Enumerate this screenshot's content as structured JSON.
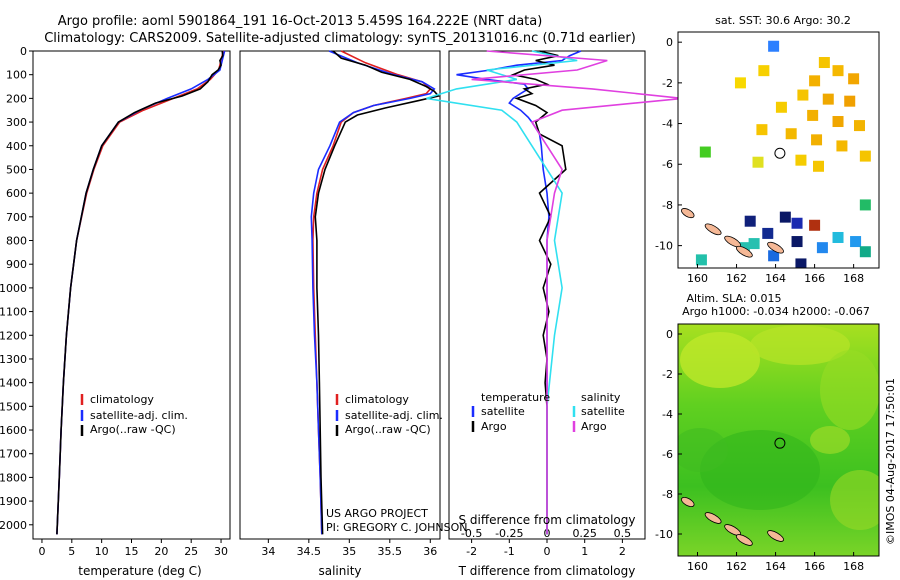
{
  "header": {
    "title_line1": "Argo profile: aoml 5901864_191 16-Oct-2013 5.459S 164.222E (NRT data)",
    "title_line2": "Climatology: CARS2009. Satellite-adjusted climatology: synTS_20131016.nc (0.71d earlier)"
  },
  "footer": {
    "project_line1": "US ARGO PROJECT",
    "project_line2": "PI: GREGORY C. JOHNSON",
    "watermark": "©IMOS 04-Aug-2017 17:50:01"
  },
  "colors": {
    "climatology": "#e02020",
    "satellite": "#1a2cff",
    "argo": "#000000",
    "sal_satellite": "#30e0f0",
    "sal_argo": "#e040e0",
    "land": "#f5b896"
  },
  "chart_data": [
    {
      "type": "line",
      "id": "temperature",
      "xlabel": "temperature (deg C)",
      "ylabel": "",
      "xlim": [
        -1.5,
        31.5
      ],
      "ylim": [
        2060,
        0
      ],
      "xticks": [
        0,
        5,
        10,
        15,
        20,
        25,
        30
      ],
      "yticks": [
        0,
        100,
        200,
        300,
        400,
        500,
        600,
        700,
        800,
        900,
        1000,
        1100,
        1200,
        1300,
        1400,
        1500,
        1600,
        1700,
        1800,
        1900,
        2000
      ],
      "legend": [
        "climatology",
        "satellite-adj. clim.",
        "Argo(..raw -QC)"
      ],
      "series": [
        {
          "name": "climatology",
          "color": "#e02020",
          "depth": [
            0,
            40,
            80,
            120,
            160,
            200,
            250,
            300,
            400,
            500,
            600,
            800,
            1000,
            1200,
            1400,
            1600,
            1800,
            2040
          ],
          "values": [
            30.4,
            30.0,
            29.6,
            28.2,
            26.0,
            22.0,
            17.0,
            13.0,
            10.2,
            8.7,
            7.5,
            5.8,
            4.8,
            4.1,
            3.6,
            3.2,
            2.9,
            2.5
          ]
        },
        {
          "name": "satellite-adj. clim.",
          "color": "#1a2cff",
          "depth": [
            0,
            40,
            80,
            120,
            160,
            200,
            250,
            300,
            400,
            500,
            600,
            800,
            1000,
            1200,
            1400,
            1600,
            1800,
            2040
          ],
          "values": [
            30.6,
            30.2,
            29.8,
            27.8,
            25.0,
            21.0,
            16.4,
            12.8,
            10.0,
            8.6,
            7.4,
            5.8,
            4.8,
            4.1,
            3.6,
            3.2,
            2.9,
            2.5
          ]
        },
        {
          "name": "Argo(..raw -QC)",
          "color": "#000000",
          "depth": [
            0,
            20,
            40,
            60,
            80,
            100,
            130,
            160,
            190,
            220,
            260,
            300,
            400,
            500,
            600,
            800,
            1000,
            1200,
            1400,
            1600,
            1800,
            2040
          ],
          "values": [
            30.2,
            30.3,
            29.8,
            30.0,
            29.5,
            28.5,
            27.8,
            26.5,
            23.5,
            19.0,
            15.5,
            12.8,
            10.0,
            8.6,
            7.4,
            5.8,
            4.8,
            4.1,
            3.6,
            3.2,
            2.9,
            2.5
          ]
        }
      ]
    },
    {
      "type": "line",
      "id": "salinity",
      "xlabel": "salinity",
      "ylabel": "",
      "xlim": [
        33.65,
        36.12
      ],
      "ylim": [
        2060,
        0
      ],
      "xticks": [
        34,
        34.5,
        35,
        35.5,
        36
      ],
      "xtick_labels": [
        "34",
        "34.5",
        "35",
        "35.5",
        "36"
      ],
      "legend": [
        "climatology",
        "satellite-adj. clim.",
        "Argo(..raw -QC)"
      ],
      "series": [
        {
          "name": "climatology",
          "color": "#e02020",
          "depth": [
            0,
            50,
            100,
            130,
            160,
            180,
            200,
            230,
            260,
            300,
            400,
            500,
            600,
            700,
            800,
            1000,
            1200,
            1400,
            1600,
            1800,
            2040
          ],
          "values": [
            34.9,
            35.2,
            35.6,
            35.9,
            36.0,
            35.95,
            35.7,
            35.3,
            35.05,
            34.9,
            34.8,
            34.67,
            34.6,
            34.56,
            34.55,
            34.56,
            34.58,
            34.6,
            34.62,
            34.64,
            34.66
          ]
        },
        {
          "name": "satellite-adj. clim.",
          "color": "#1a2cff",
          "depth": [
            0,
            50,
            100,
            130,
            160,
            180,
            200,
            230,
            260,
            300,
            400,
            500,
            600,
            700,
            800,
            1000,
            1200,
            1400,
            1600,
            1800,
            2040
          ],
          "values": [
            34.75,
            35.1,
            35.55,
            35.9,
            36.05,
            36.0,
            35.75,
            35.3,
            35.05,
            34.88,
            34.76,
            34.62,
            34.56,
            34.53,
            34.54,
            34.55,
            34.57,
            34.6,
            34.62,
            34.64,
            34.66
          ]
        },
        {
          "name": "Argo(..raw -QC)",
          "color": "#000000",
          "depth": [
            0,
            30,
            60,
            90,
            120,
            150,
            170,
            190,
            210,
            240,
            270,
            300,
            400,
            500,
            600,
            700,
            800,
            1000,
            1200,
            1400,
            1600,
            1800,
            2040
          ],
          "values": [
            34.8,
            34.9,
            35.2,
            35.4,
            35.75,
            35.95,
            36.05,
            36.1,
            35.85,
            35.45,
            35.1,
            34.95,
            34.82,
            34.7,
            34.62,
            34.58,
            34.6,
            34.6,
            34.62,
            34.63,
            34.64,
            34.65,
            34.67
          ]
        }
      ]
    },
    {
      "type": "line",
      "id": "differences",
      "xlabel": "T difference from climatology",
      "xlabel_top": "S difference from climatology",
      "xlim": [
        -2.6,
        2.6
      ],
      "ylim": [
        2060,
        0
      ],
      "xticks": [
        -2,
        -1,
        0,
        1,
        2
      ],
      "sal_xticks": [
        -0.5,
        -0.25,
        0,
        0.25,
        0.5
      ],
      "sal_xtick_labels": [
        "-0.5",
        "-0.25",
        "0",
        "0.25",
        "0.5"
      ],
      "sal_scale": 4,
      "legend_left_title": "temperature",
      "legend_left": [
        "satellite",
        "Argo"
      ],
      "legend_right_title": "salinity",
      "legend_right": [
        "satellite",
        "Argo"
      ],
      "series": [
        {
          "name": "T satellite",
          "color": "#1a2cff",
          "depth": [
            0,
            20,
            40,
            60,
            80,
            100,
            120,
            140,
            160,
            180,
            200,
            220,
            250,
            280,
            300,
            350,
            400,
            500,
            600,
            700,
            800,
            1000,
            1200,
            1500,
            2040
          ],
          "values": [
            0.9,
            0.6,
            0.4,
            -0.8,
            -1.5,
            -2.4,
            -1.6,
            -0.6,
            -0.5,
            -0.7,
            -0.9,
            -1.0,
            -0.7,
            -0.5,
            -0.4,
            -0.2,
            -0.15,
            -0.1,
            0,
            0.05,
            0,
            0,
            0,
            0,
            0
          ]
        },
        {
          "name": "T Argo",
          "color": "#000000",
          "depth": [
            0,
            20,
            40,
            60,
            80,
            100,
            120,
            140,
            160,
            180,
            200,
            230,
            260,
            300,
            350,
            400,
            500,
            600,
            700,
            800,
            900,
            1000,
            1100,
            1200,
            1300,
            1400,
            1500,
            1700,
            2040
          ],
          "values": [
            -0.2,
            0.3,
            -0.3,
            0.2,
            -0.6,
            -0.9,
            -0.3,
            0.0,
            -0.6,
            -0.4,
            -0.8,
            -0.3,
            0.0,
            -0.3,
            -0.2,
            0.4,
            0.5,
            -0.2,
            0.1,
            -0.2,
            0.1,
            -0.1,
            0.05,
            -0.1,
            0.0,
            -0.05,
            0.0,
            0.0,
            0.0
          ]
        },
        {
          "name": "S satellite",
          "color": "#30e0f0",
          "depth": [
            0,
            40,
            80,
            120,
            160,
            200,
            250,
            300,
            400,
            500,
            600,
            800,
            1000,
            1200,
            1500,
            2040
          ],
          "values": [
            -0.1,
            0.2,
            -0.4,
            -0.2,
            -0.6,
            -0.8,
            -0.3,
            -0.2,
            -0.1,
            0.0,
            0.1,
            0.05,
            0.1,
            0.05,
            0.0,
            0.0
          ]
        },
        {
          "name": "S Argo",
          "color": "#e040e0",
          "depth": [
            0,
            40,
            80,
            120,
            160,
            200,
            250,
            300,
            400,
            500,
            600,
            800,
            1000,
            1200,
            1500,
            2040
          ],
          "values": [
            -0.4,
            0.4,
            0.2,
            -0.5,
            0.3,
            0.9,
            0.1,
            -0.1,
            0.0,
            0.1,
            0.05,
            0.0,
            0.0,
            0.0,
            0.0,
            0.0
          ]
        }
      ]
    },
    {
      "type": "heatmap",
      "id": "sst_map",
      "title": "sat. SST: 30.6  Argo: 30.2",
      "xlim": [
        159,
        169.3
      ],
      "ylim": [
        -11.1,
        0.5
      ],
      "xticks": [
        160,
        162,
        164,
        166,
        168
      ],
      "yticks": [
        0,
        -2,
        -4,
        -6,
        -8,
        -10
      ],
      "profile_location": [
        164.222,
        -5.459
      ],
      "islands": [
        [
          159.5,
          -8.4
        ],
        [
          160.8,
          -9.2
        ],
        [
          161.8,
          -9.8
        ],
        [
          162.4,
          -10.3
        ],
        [
          164.0,
          -10.1
        ]
      ],
      "cells": [
        [
          163.9,
          -0.2,
          "#2b7fff"
        ],
        [
          166.5,
          -1.0,
          "#f5c400"
        ],
        [
          167.2,
          -1.4,
          "#f5b800"
        ],
        [
          166.0,
          -1.9,
          "#f3b000"
        ],
        [
          168.0,
          -1.8,
          "#f2a600"
        ],
        [
          165.4,
          -2.6,
          "#f5c400"
        ],
        [
          166.7,
          -2.8,
          "#efa800"
        ],
        [
          167.8,
          -2.9,
          "#f0a000"
        ],
        [
          164.3,
          -3.2,
          "#f6cc00"
        ],
        [
          165.9,
          -3.6,
          "#f2b000"
        ],
        [
          167.2,
          -3.9,
          "#f0a600"
        ],
        [
          168.3,
          -4.1,
          "#f2b400"
        ],
        [
          163.3,
          -4.3,
          "#f6c400"
        ],
        [
          164.8,
          -4.5,
          "#f3b800"
        ],
        [
          166.1,
          -4.8,
          "#f2b000"
        ],
        [
          167.4,
          -5.1,
          "#f4b800"
        ],
        [
          168.6,
          -5.6,
          "#f5c400"
        ],
        [
          165.3,
          -5.8,
          "#f5cc00"
        ],
        [
          163.1,
          -5.9,
          "#e0e020"
        ],
        [
          160.4,
          -5.4,
          "#44cc22"
        ],
        [
          166.2,
          -6.1,
          "#f5c600"
        ],
        [
          162.2,
          -2.0,
          "#f8d800"
        ],
        [
          163.4,
          -1.4,
          "#f7d000"
        ],
        [
          168.6,
          -8.0,
          "#22bb66"
        ],
        [
          162.7,
          -8.8,
          "#10207a"
        ],
        [
          163.6,
          -9.4,
          "#122a90"
        ],
        [
          164.5,
          -8.6,
          "#0a1866"
        ],
        [
          165.1,
          -8.9,
          "#1a2ab0"
        ],
        [
          166.0,
          -9.0,
          "#b03010"
        ],
        [
          165.1,
          -9.8,
          "#0a1866"
        ],
        [
          163.9,
          -10.5,
          "#1a6ae0"
        ],
        [
          162.4,
          -10.1,
          "#26c0b0"
        ],
        [
          166.4,
          -10.1,
          "#2288ee"
        ],
        [
          167.2,
          -9.6,
          "#22bbdd"
        ],
        [
          168.1,
          -9.8,
          "#2299ee"
        ],
        [
          168.6,
          -10.3,
          "#11aa88"
        ],
        [
          160.2,
          -10.7,
          "#22c0aa"
        ],
        [
          165.3,
          -10.9,
          "#0a1866"
        ],
        [
          162.9,
          -9.9,
          "#26c0b0"
        ]
      ]
    },
    {
      "type": "heatmap",
      "id": "sla_map",
      "title_line1": "Altim. SLA: 0.015",
      "title_line2": "Argo h1000: -0.034  h2000: -0.067",
      "xlim": [
        159,
        169.3
      ],
      "ylim": [
        -11.1,
        0.5
      ],
      "xticks": [
        160,
        162,
        164,
        166,
        168
      ],
      "yticks": [
        0,
        -2,
        -4,
        -6,
        -8,
        -10
      ],
      "profile_location": [
        164.222,
        -5.459
      ],
      "islands": [
        [
          159.5,
          -8.4
        ],
        [
          160.8,
          -9.2
        ],
        [
          161.8,
          -9.8
        ],
        [
          162.4,
          -10.3
        ],
        [
          164.0,
          -10.1
        ]
      ]
    }
  ]
}
